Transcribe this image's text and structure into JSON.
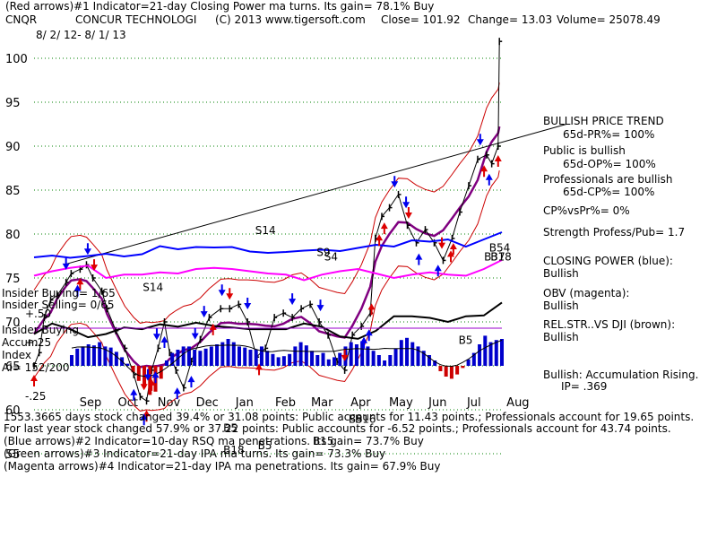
{
  "header": {
    "line1": "(Red arrows)#1 Indicator=21-day Closing Power ma turns. Its gain= 78.1% Buy",
    "ticker": "CNQR",
    "company": "CONCUR TECHNOLOGI",
    "copyright": "(C) 2013 www.tigersoft.com",
    "close": "Close= 101.92",
    "change": "Change= 13.03",
    "volume": "Volume= 25078.49",
    "date_range": "8/ 2/ 12- 8/ 1/ 13"
  },
  "right_panel": {
    "trend_title": "BULLISH PRICE TREND",
    "pr": "65d-PR%= 100%",
    "public_title": "Public is bullish",
    "op": "65d-OP%= 100%",
    "prof_title": "Professionals are bullish",
    "cp": "65d-CP%= 100%",
    "cp_vs_pr": "CP%vsPr%= 0%",
    "strength": "Strength Profess/Pub= 1.7",
    "closing_power_title": "CLOSING POWER (blue):",
    "closing_power_val": "Bullish",
    "obv_title": "OBV (magenta):",
    "obv_val": "Bullish",
    "relstr_title": "REL.STR..VS DJI (brown):",
    "relstr_val": "Bullish",
    "accum": "Bullish: Accumulation Rising.",
    "ip": "IP= .369"
  },
  "left_labels": {
    "insider_buying": "Insider Buying= 1/65",
    "insider_selling": "Insider Selling= 0/65",
    "plus50": "+.50",
    "insider_buying2": "Insider Buying",
    "accum": "Accum",
    "index": "Index",
    "ai": "AI= 152/200",
    "plus25": "+.25",
    "minus25": "-.25"
  },
  "footer": {
    "line1": "1553.3665 days stock changed 39.4% or 31.08 points: Public accounts for 11.43 points.; Professionals account for 19.65 points.",
    "line2": "For last year stock changed 57.9% or 37.22 points: Public accounts for -6.52 points.; Professionals account for 43.74 points.",
    "line3": "(Blue arrows)#2 Indicator=10-day RSQ ma penetrations. Its gain= 73.7% Buy",
    "line4": "(Green arrows)#3 Indicator=21-day IPA ma turns. Its gain= 73.3% Buy",
    "line5": "(Magenta arrows)#4 Indicator=21-day IPA ma penetrations. Its gain= 67.9% Buy"
  },
  "colors": {
    "price": "#000000",
    "band": "#cc0000",
    "ma": "#800080",
    "closing_power": "#0000ff",
    "obv": "#ff00ff",
    "relstr": "#000000",
    "accum_pos": "#0000cc",
    "accum_neg": "#cc0000",
    "grid": "#008000",
    "trendline": "#000000"
  },
  "annotations": [
    {
      "label": "S14",
      "date": "2012-10-26",
      "price": 73.5
    },
    {
      "label": "S14",
      "date": "2013-01-22",
      "price": 80.0
    },
    {
      "label": "S9",
      "date": "2013-03-11",
      "price": 77.5
    },
    {
      "label": "S4",
      "date": "2013-03-17",
      "price": 77.0
    },
    {
      "label": "B5",
      "date": "2012-12-28",
      "price": 57.5
    },
    {
      "label": "B18",
      "date": "2012-12-28",
      "price": 55.0
    },
    {
      "label": "B5",
      "date": "2013-01-24",
      "price": 55.5
    },
    {
      "label": "B15",
      "date": "2013-03-08",
      "price": 56.0
    },
    {
      "label": "B5",
      "date": "2013-04-05",
      "price": 58.5
    },
    {
      "label": "B16",
      "date": "2013-04-10",
      "price": 58.5
    },
    {
      "label": "B5",
      "date": "2013-06-30",
      "price": 67.5
    },
    {
      "label": "B37",
      "date": "2013-07-20",
      "price": 77.0
    },
    {
      "label": "B18",
      "date": "2013-07-25",
      "price": 77.0
    },
    {
      "label": "B54",
      "date": "2013-07-24",
      "price": 78.0
    }
  ],
  "chart_data": [
    {
      "type": "line",
      "title": "CNQR CONCUR TECHNOLOGI",
      "xlabel": "",
      "ylabel": "",
      "x_tick_labels": [
        "Sep",
        "Oct",
        "Nov",
        "Dec",
        "Jan",
        "Feb",
        "Mar",
        "Apr",
        "May",
        "Jun",
        "Jul",
        "Aug"
      ],
      "y_tick_labels": [
        55,
        60,
        65,
        70,
        75,
        80,
        85,
        90,
        95,
        100
      ],
      "ylim": [
        52,
        104
      ],
      "grid": true,
      "series": [
        {
          "points": [
            [
              "2012-08-02",
              65.0
            ],
            [
              "2012-08-06",
              66.5
            ],
            [
              "2012-08-10",
              70.5
            ],
            [
              "2012-08-15",
              72.5
            ],
            [
              "2012-08-20",
              73.0
            ],
            [
              "2012-08-27",
              74.5
            ],
            [
              "2012-08-31",
              75.5
            ],
            [
              "2012-09-07",
              76.0
            ],
            [
              "2012-09-12",
              76.5
            ],
            [
              "2012-09-17",
              75.0
            ],
            [
              "2012-09-24",
              73.5
            ],
            [
              "2012-09-28",
              71.5
            ],
            [
              "2012-10-05",
              69.0
            ],
            [
              "2012-10-12",
              67.0
            ],
            [
              "2012-10-19",
              64.0
            ],
            [
              "2012-10-24",
              61.5
            ],
            [
              "2012-10-29",
              61.0
            ],
            [
              "2012-11-02",
              64.5
            ],
            [
              "2012-11-07",
              67.0
            ],
            [
              "2012-11-12",
              70.0
            ],
            [
              "2012-11-16",
              66.5
            ],
            [
              "2012-11-21",
              64.5
            ],
            [
              "2012-11-27",
              62.5
            ],
            [
              "2012-12-03",
              65.5
            ],
            [
              "2012-12-10",
              68.0
            ],
            [
              "2012-12-17",
              70.5
            ],
            [
              "2012-12-26",
              71.5
            ],
            [
              "2013-01-02",
              71.5
            ],
            [
              "2013-01-09",
              72.0
            ],
            [
              "2013-01-16",
              70.0
            ],
            [
              "2013-01-23",
              66.0
            ],
            [
              "2013-01-30",
              67.0
            ],
            [
              "2013-02-06",
              70.5
            ],
            [
              "2013-02-13",
              71.0
            ],
            [
              "2013-02-20",
              70.5
            ],
            [
              "2013-02-27",
              71.5
            ],
            [
              "2013-03-06",
              72.0
            ],
            [
              "2013-03-13",
              70.0
            ],
            [
              "2013-03-20",
              68.5
            ],
            [
              "2013-03-27",
              65.5
            ],
            [
              "2013-04-02",
              64.5
            ],
            [
              "2013-04-08",
              68.5
            ],
            [
              "2013-04-15",
              69.5
            ],
            [
              "2013-04-22",
              71.0
            ],
            [
              "2013-04-26",
              79.5
            ],
            [
              "2013-05-01",
              82.0
            ],
            [
              "2013-05-07",
              83.0
            ],
            [
              "2013-05-14",
              84.5
            ],
            [
              "2013-05-21",
              81.0
            ],
            [
              "2013-05-28",
              79.0
            ],
            [
              "2013-06-04",
              80.5
            ],
            [
              "2013-06-11",
              79.0
            ],
            [
              "2013-06-18",
              77.0
            ],
            [
              "2013-06-25",
              79.5
            ],
            [
              "2013-07-01",
              82.5
            ],
            [
              "2013-07-08",
              85.5
            ],
            [
              "2013-07-15",
              88.5
            ],
            [
              "2013-07-22",
              89.0
            ],
            [
              "2013-07-26",
              88.0
            ],
            [
              "2013-07-31",
              90.0
            ],
            [
              "2013-08-01",
              101.92
            ]
          ]
        }
      ],
      "annotation_arrows": {
        "red_up": [
          "2012-08-02",
          "2012-09-07",
          "2012-10-29",
          "2012-11-02",
          "2012-12-20",
          "2013-01-25",
          "2013-04-23",
          "2013-04-29",
          "2013-05-03",
          "2013-06-26",
          "2013-06-24",
          "2013-07-20",
          "2013-07-31"
        ],
        "red_down": [
          "2012-09-18",
          "2012-10-27",
          "2013-01-02",
          "2013-04-02",
          "2013-05-22",
          "2013-06-17"
        ],
        "blue_down": [
          "2012-08-27",
          "2012-09-13",
          "2012-10-30",
          "2012-11-06",
          "2012-12-06",
          "2012-12-13",
          "2012-12-27",
          "2013-01-16",
          "2013-02-20",
          "2013-03-14",
          "2013-05-11",
          "2013-05-20",
          "2013-07-17"
        ],
        "blue_up": [
          "2012-09-05",
          "2012-10-19",
          "2012-10-27",
          "2012-11-05",
          "2012-11-12",
          "2012-11-22",
          "2012-12-03",
          "2013-04-17",
          "2013-04-21",
          "2013-05-30",
          "2013-06-14",
          "2013-07-24"
        ]
      }
    },
    {
      "type": "line",
      "title": "Indicators",
      "y_tick_labels": [
        "+.50"
      ],
      "series": [
        {
          "name": "CLOSING POWER",
          "values": [
            1.3,
            1.5,
            1.25,
            1.45,
            1.7,
            1.4,
            1.65,
            2.55,
            2.2,
            2.45,
            2.4,
            2.45,
            1.95,
            1.8,
            1.9,
            2.05,
            2.15,
            2.0,
            2.35,
            2.7,
            2.5,
            3.2,
            3.05,
            3.3,
            2.5,
            3.3,
            4.1
          ]
        },
        {
          "name": "OBV",
          "values": [
            0.5,
            0.7,
            0.85,
            0.95,
            0.4,
            0.55,
            0.55,
            0.65,
            0.6,
            0.8,
            0.85,
            0.8,
            0.7,
            0.6,
            0.55,
            0.3,
            0.55,
            0.7,
            0.8,
            0.6,
            0.4,
            0.55,
            0.65,
            0.55,
            0.5,
            0.8,
            1.2
          ]
        },
        {
          "name": "REL.STR..VS DJI",
          "values": [
            -1.25,
            -0.6,
            -0.95,
            -1.45,
            -1.25,
            -0.85,
            -0.95,
            -0.65,
            -0.8,
            -0.55,
            -0.75,
            -0.85,
            -0.95,
            -0.95,
            -0.95,
            -0.6,
            -0.8,
            -1.4,
            -1.55,
            -1.05,
            -0.15,
            -0.15,
            -0.25,
            -0.5,
            -0.15,
            -0.1,
            0.7
          ]
        }
      ]
    },
    {
      "type": "bar",
      "title": "Accum Index",
      "y_tick_labels": [
        "+.25",
        "-.25"
      ],
      "ylim": [
        -0.35,
        0.35
      ],
      "values": [
        0.1,
        0.16,
        0.18,
        0.2,
        0.19,
        0.22,
        0.18,
        0.17,
        0.13,
        0.08,
        0.02,
        -0.06,
        -0.14,
        -0.2,
        -0.27,
        -0.24,
        -0.12,
        0.05,
        0.12,
        0.15,
        0.18,
        0.18,
        0.15,
        0.14,
        0.16,
        0.18,
        0.2,
        0.22,
        0.25,
        0.22,
        0.18,
        0.17,
        0.15,
        0.15,
        0.18,
        0.14,
        0.11,
        0.08,
        0.09,
        0.11,
        0.18,
        0.22,
        0.19,
        0.14,
        0.1,
        0.12,
        0.06,
        0.08,
        0.12,
        0.18,
        0.22,
        0.2,
        0.23,
        0.18,
        0.14,
        0.1,
        0.05,
        0.1,
        0.16,
        0.24,
        0.26,
        0.22,
        0.18,
        0.14,
        0.1,
        0.05,
        -0.05,
        -0.1,
        -0.12,
        -0.08,
        -0.02,
        0.06,
        0.12,
        0.2,
        0.28,
        0.22,
        0.24,
        0.25
      ]
    }
  ]
}
